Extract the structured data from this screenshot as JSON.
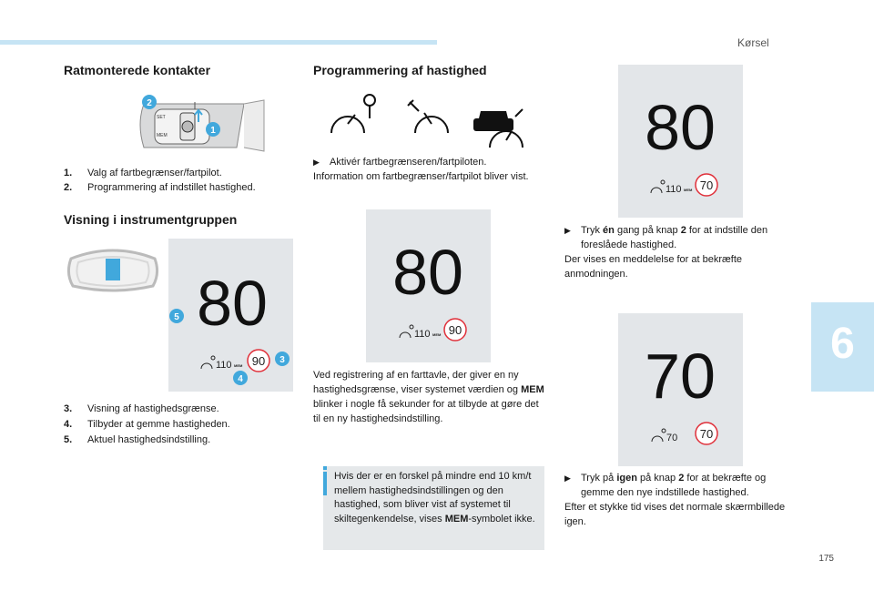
{
  "header": {
    "section": "Kørsel",
    "chapter": "6",
    "page_number": "175"
  },
  "left": {
    "title1": "Ratmonterede kontakter",
    "steering_labels": {
      "n1": "1",
      "n2": "2"
    },
    "items_a": [
      {
        "num": "1.",
        "text": "Valg af fartbegrænser/fartpilot."
      },
      {
        "num": "2.",
        "text": "Programmering af indstillet hastighed."
      }
    ],
    "title2": "Visning i instrumentgruppen",
    "cluster": {
      "big": "80",
      "small": "110",
      "mem": "MEM",
      "circle": "90",
      "badges": {
        "n3": "3",
        "n4": "4",
        "n5": "5"
      }
    },
    "items_b": [
      {
        "num": "3.",
        "text": "Visning af hastighedsgrænse."
      },
      {
        "num": "4.",
        "text": "Tilbyder at gemme hastigheden."
      },
      {
        "num": "5.",
        "text": "Aktuel hastighedsindstilling."
      }
    ]
  },
  "middle": {
    "title": "Programmering af hastighed",
    "bullet": "Aktivér fartbegrænseren/fartpiloten.",
    "bullet_after": "Information om fartbegrænser/fartpilot bliver vist.",
    "display": {
      "big": "80",
      "small": "110",
      "mem": "MEM",
      "circle": "90"
    },
    "para": "Ved registrering af en farttavle, der giver en ny hastighedsgrænse, viser systemet værdien og",
    "para_bold": "MEM",
    "para_end": "blinker i nogle få sekunder for at tilbyde at gøre det til en ny hastighedsindstilling.",
    "note_a": "Hvis der er en forskel på mindre end 10 km/t mellem hastighedsindstillingen og den hastighed, som bliver vist af systemet til skiltegenkendelse, vises",
    "note_bold": "MEM",
    "note_b": "-symbolet ikke."
  },
  "right": {
    "display1": {
      "big": "80",
      "small": "110",
      "mem": "MEM",
      "circle": "70"
    },
    "b1_pre": "Tryk",
    "b1_bold": "én",
    "b1_mid": "gang på knap",
    "b1_key": "2",
    "b1_post": "for at indstille den foreslåede hastighed.",
    "b1_after": "Der vises en meddelelse for at bekræfte anmodningen.",
    "display2": {
      "big": "70",
      "small": "70",
      "circle": "70"
    },
    "b2_pre": "Tryk på",
    "b2_bold": "igen",
    "b2_mid": "på knap",
    "b2_key": "2",
    "b2_post": "for at bekræfte og gemme den nye indstillede hastighed.",
    "b2_after": "Efter et stykke tid vises det normale skærmbillede igen."
  },
  "colors": {
    "accent_blue": "#41a8dc",
    "light_blue": "#c6e4f4",
    "panel_gray": "#e3e6e9",
    "limit_red": "#e0303a"
  }
}
